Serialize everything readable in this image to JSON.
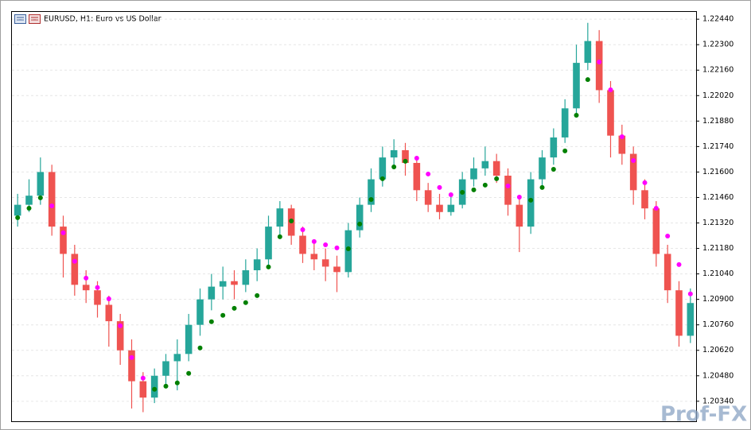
{
  "chart_data": {
    "type": "candlestick",
    "title": "EURUSD, H1:  Euro vs US Dollar",
    "watermark": "Prof-FX",
    "ylim": [
      1.2023,
      1.2248
    ],
    "yticks": [
      {
        "value": 1.2244,
        "label": "1.22440"
      },
      {
        "value": 1.223,
        "label": "1.22300"
      },
      {
        "value": 1.2216,
        "label": "1.22160"
      },
      {
        "value": 1.2202,
        "label": "1.22020"
      },
      {
        "value": 1.2188,
        "label": "1.21880"
      },
      {
        "value": 1.2174,
        "label": "1.21740"
      },
      {
        "value": 1.216,
        "label": "1.21600"
      },
      {
        "value": 1.2146,
        "label": "1.21460"
      },
      {
        "value": 1.2132,
        "label": "1.21320"
      },
      {
        "value": 1.2118,
        "label": "1.21180"
      },
      {
        "value": 1.2104,
        "label": "1.21040"
      },
      {
        "value": 1.209,
        "label": "1.20900"
      },
      {
        "value": 1.2076,
        "label": "1.20760"
      },
      {
        "value": 1.2062,
        "label": "1.20620"
      },
      {
        "value": 1.2048,
        "label": "1.20480"
      },
      {
        "value": 1.2034,
        "label": "1.20340"
      }
    ],
    "grid": true,
    "up_color": "#26a69a",
    "down_color": "#ef5350",
    "candles": [
      [
        1.2136,
        1.2148,
        1.213,
        1.2142
      ],
      [
        1.2142,
        1.2156,
        1.2138,
        1.2147
      ],
      [
        1.2147,
        1.2168,
        1.2142,
        1.216
      ],
      [
        1.216,
        1.2164,
        1.2125,
        1.213
      ],
      [
        1.213,
        1.2136,
        1.2102,
        1.2115
      ],
      [
        1.2115,
        1.212,
        1.2092,
        1.2098
      ],
      [
        1.2098,
        1.2106,
        1.2088,
        1.2095
      ],
      [
        1.2095,
        1.21,
        1.208,
        1.2087
      ],
      [
        1.2087,
        1.2092,
        1.2064,
        1.2078
      ],
      [
        1.2078,
        1.2082,
        1.2054,
        1.2062
      ],
      [
        1.2062,
        1.2068,
        1.203,
        1.2045
      ],
      [
        1.2045,
        1.205,
        1.2028,
        1.2036
      ],
      [
        1.2036,
        1.2052,
        1.2033,
        1.2048
      ],
      [
        1.2048,
        1.206,
        1.2042,
        1.2056
      ],
      [
        1.2056,
        1.2068,
        1.204,
        1.206
      ],
      [
        1.206,
        1.2082,
        1.2056,
        1.2076
      ],
      [
        1.2076,
        1.2096,
        1.207,
        1.209
      ],
      [
        1.209,
        1.2104,
        1.2084,
        1.2097
      ],
      [
        1.2097,
        1.2108,
        1.209,
        1.21
      ],
      [
        1.21,
        1.2106,
        1.209,
        1.2098
      ],
      [
        1.2098,
        1.2112,
        1.2094,
        1.2106
      ],
      [
        1.2106,
        1.2118,
        1.21,
        1.2112
      ],
      [
        1.2112,
        1.2136,
        1.2108,
        1.213
      ],
      [
        1.213,
        1.2144,
        1.2124,
        1.214
      ],
      [
        1.214,
        1.2142,
        1.212,
        1.2125
      ],
      [
        1.2125,
        1.213,
        1.211,
        1.2115
      ],
      [
        1.2115,
        1.2122,
        1.2106,
        1.2112
      ],
      [
        1.2112,
        1.2118,
        1.21,
        1.2108
      ],
      [
        1.2108,
        1.2114,
        1.2094,
        1.2105
      ],
      [
        1.2105,
        1.2132,
        1.2102,
        1.2128
      ],
      [
        1.2128,
        1.2146,
        1.2124,
        1.2142
      ],
      [
        1.2142,
        1.2162,
        1.2138,
        1.2156
      ],
      [
        1.2156,
        1.2174,
        1.2152,
        1.2168
      ],
      [
        1.2168,
        1.2178,
        1.2162,
        1.2172
      ],
      [
        1.2172,
        1.2176,
        1.2158,
        1.2165
      ],
      [
        1.2165,
        1.2168,
        1.2144,
        1.215
      ],
      [
        1.215,
        1.2154,
        1.2138,
        1.2142
      ],
      [
        1.2142,
        1.2148,
        1.2134,
        1.2138
      ],
      [
        1.2138,
        1.2148,
        1.2136,
        1.2142
      ],
      [
        1.2142,
        1.216,
        1.214,
        1.2156
      ],
      [
        1.2156,
        1.2168,
        1.2152,
        1.2162
      ],
      [
        1.2162,
        1.2174,
        1.2158,
        1.2166
      ],
      [
        1.2166,
        1.217,
        1.2154,
        1.2158
      ],
      [
        1.2158,
        1.2162,
        1.2136,
        1.2142
      ],
      [
        1.2142,
        1.2146,
        1.2116,
        1.213
      ],
      [
        1.213,
        1.216,
        1.2126,
        1.2156
      ],
      [
        1.2156,
        1.2172,
        1.2152,
        1.2168
      ],
      [
        1.2168,
        1.2184,
        1.2164,
        1.2179
      ],
      [
        1.2179,
        1.22,
        1.2176,
        1.2195
      ],
      [
        1.2195,
        1.223,
        1.219,
        1.222
      ],
      [
        1.222,
        1.2242,
        1.2216,
        1.2232
      ],
      [
        1.2232,
        1.2238,
        1.2198,
        1.2205
      ],
      [
        1.2205,
        1.221,
        1.2168,
        1.218
      ],
      [
        1.218,
        1.2186,
        1.2164,
        1.217
      ],
      [
        1.217,
        1.2174,
        1.2142,
        1.215
      ],
      [
        1.215,
        1.2156,
        1.2134,
        1.214
      ],
      [
        1.214,
        1.2144,
        1.2108,
        1.2115
      ],
      [
        1.2115,
        1.212,
        1.2088,
        1.2095
      ],
      [
        1.2095,
        1.21,
        1.2064,
        1.207
      ],
      [
        1.207,
        1.2096,
        1.2066,
        1.2088
      ]
    ],
    "series": [
      {
        "color": "#008000",
        "values": [
          1.21349,
          1.21401,
          1.21458,
          null,
          null,
          null,
          null,
          null,
          null,
          null,
          null,
          null,
          1.20406,
          1.20423,
          1.20441,
          1.20493,
          1.20633,
          1.20777,
          1.20812,
          1.20851,
          1.20882,
          1.20921,
          1.21078,
          1.21244,
          1.21331,
          null,
          null,
          null,
          null,
          1.21178,
          1.21314,
          1.21449,
          1.21563,
          1.21628,
          1.21659,
          null,
          null,
          null,
          null,
          1.21488,
          1.21502,
          1.21528,
          1.21563,
          null,
          null,
          1.21445,
          1.21515,
          1.21615,
          1.21716,
          1.21912,
          1.22108,
          null,
          null,
          null,
          null,
          null,
          null,
          null,
          null,
          null
        ]
      },
      {
        "color": "#ff00ff",
        "values": [
          null,
          null,
          null,
          1.21414,
          1.21266,
          1.21109,
          1.21017,
          1.20965,
          1.20903,
          1.20755,
          1.2058,
          1.20467,
          null,
          null,
          null,
          null,
          null,
          null,
          null,
          null,
          null,
          null,
          null,
          null,
          null,
          1.21283,
          1.21218,
          1.212,
          1.21183,
          null,
          null,
          null,
          null,
          null,
          null,
          1.21676,
          1.21589,
          1.21515,
          1.21475,
          null,
          null,
          null,
          null,
          1.21523,
          1.21462,
          null,
          null,
          null,
          null,
          null,
          null,
          1.22205,
          1.22052,
          1.21794,
          1.21663,
          1.21541,
          1.21401,
          1.21248,
          1.21091,
          1.2093
        ]
      }
    ]
  }
}
